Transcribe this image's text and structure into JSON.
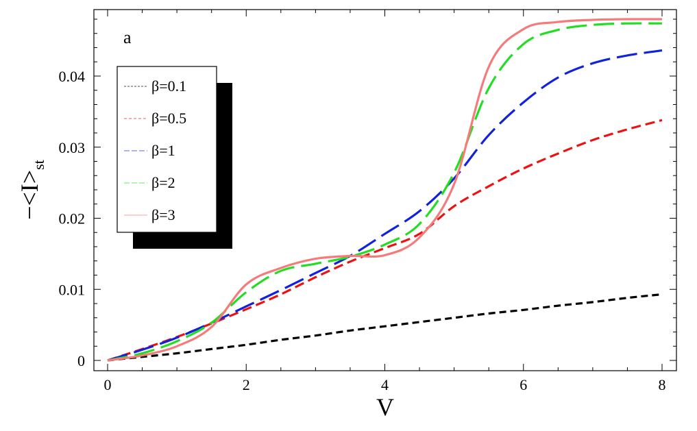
{
  "chart_data": {
    "type": "line",
    "panel_label": "a",
    "xlabel": "V",
    "ylabel_main": "−<I>",
    "ylabel_sub": "st",
    "xlim": [
      0,
      8
    ],
    "ylim": [
      0,
      0.048
    ],
    "x_ticks": [
      0,
      2,
      4,
      6,
      8
    ],
    "x_tick_labels": [
      "0",
      "2",
      "4",
      "6",
      "8"
    ],
    "y_ticks": [
      0,
      0.01,
      0.02,
      0.03,
      0.04
    ],
    "y_tick_labels": [
      "0",
      "0.01",
      "0.02",
      "0.03",
      "0.04"
    ],
    "legend_position": "upper-left",
    "x": [
      0,
      0.5,
      1,
      1.5,
      2,
      2.5,
      3,
      3.5,
      4,
      4.5,
      5,
      5.5,
      6,
      6.5,
      7,
      7.5,
      8
    ],
    "series": [
      {
        "name": "β=0.1",
        "color": "#000000",
        "dash": "short-dash",
        "values": [
          0,
          0.0005,
          0.001,
          0.0016,
          0.0022,
          0.0029,
          0.0035,
          0.0042,
          0.0048,
          0.0054,
          0.006,
          0.0066,
          0.0071,
          0.0077,
          0.0082,
          0.0088,
          0.0093
        ]
      },
      {
        "name": "β=0.5",
        "color": "#ee1111",
        "dash": "dash",
        "values": [
          0,
          0.0016,
          0.0033,
          0.0052,
          0.0072,
          0.0093,
          0.0117,
          0.0139,
          0.0158,
          0.0178,
          0.0217,
          0.0245,
          0.027,
          0.0291,
          0.031,
          0.0325,
          0.0338
        ]
      },
      {
        "name": "β=1",
        "color": "#1122dd",
        "dash": "long-dash",
        "values": [
          0,
          0.0015,
          0.0032,
          0.0053,
          0.0076,
          0.0099,
          0.0123,
          0.0147,
          0.0178,
          0.021,
          0.0256,
          0.0317,
          0.0363,
          0.0398,
          0.0418,
          0.0429,
          0.0436
        ]
      },
      {
        "name": "β=2",
        "color": "#22dd22",
        "dash": "long-dash",
        "values": [
          0,
          0.001,
          0.0027,
          0.0053,
          0.0096,
          0.0126,
          0.0136,
          0.0146,
          0.0163,
          0.0192,
          0.0264,
          0.0383,
          0.0445,
          0.0465,
          0.0472,
          0.0474,
          0.0474
        ]
      },
      {
        "name": "β=3",
        "color": "#f57b7b",
        "dash": "solid",
        "values": [
          0,
          0.0007,
          0.002,
          0.0047,
          0.0107,
          0.013,
          0.0143,
          0.0147,
          0.0148,
          0.0173,
          0.0248,
          0.0413,
          0.0466,
          0.0476,
          0.0479,
          0.048,
          0.048
        ]
      }
    ]
  }
}
